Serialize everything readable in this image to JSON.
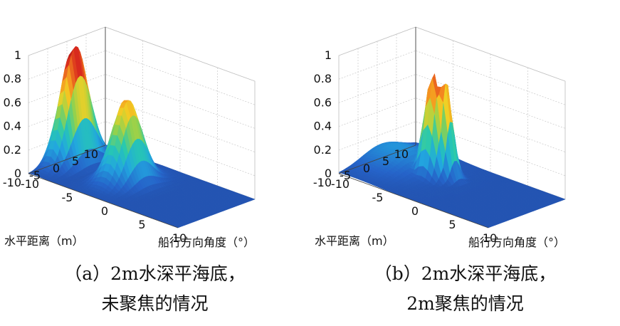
{
  "chart_data": [
    {
      "type": "surface",
      "panel": "a",
      "caption_line1": "（a）2m水深平海底，",
      "caption_line2": "未聚焦的情况",
      "xlabel": "船行方向角度（°）",
      "ylabel": "水平距离（m）",
      "zlabel": "",
      "x_ticks": [
        "-10",
        "-5",
        "0",
        "5",
        "10"
      ],
      "y_ticks": [
        "10",
        "5",
        "0",
        "-5",
        "-10"
      ],
      "z_ticks": [
        "0",
        "0.2",
        "0.4",
        "0.6",
        "0.8",
        "1"
      ],
      "xlim": [
        -10,
        10
      ],
      "ylim": [
        -10,
        10
      ],
      "zlim": [
        0,
        1
      ],
      "colormap": [
        "#1f3a8a",
        "#2563c9",
        "#22a6e0",
        "#27c9b0",
        "#8fd14f",
        "#f2d024",
        "#f58a1f",
        "#d7261e",
        "#9b1111"
      ],
      "peaks": [
        {
          "x": -9,
          "y": 0,
          "z": 1.0,
          "sx": 1.0,
          "sy": 3.2
        },
        {
          "x": -2,
          "y": 0,
          "z": 0.7,
          "sx": 1.3,
          "sy": 3.0
        }
      ]
    },
    {
      "type": "surface",
      "panel": "b",
      "caption_line1": "（b）2m水深平海底，",
      "caption_line2": "2m聚焦的情况",
      "xlabel": "船行方向角度（°）",
      "ylabel": "水平距离（m）",
      "zlabel": "",
      "x_ticks": [
        "-10",
        "-5",
        "0",
        "5",
        "10"
      ],
      "y_ticks": [
        "10",
        "5",
        "0",
        "-5",
        "-10"
      ],
      "z_ticks": [
        "0",
        "0.2",
        "0.4",
        "0.6",
        "0.8",
        "1"
      ],
      "xlim": [
        -10,
        10
      ],
      "ylim": [
        -10,
        10
      ],
      "zlim": [
        0,
        1
      ],
      "colormap": [
        "#1f3a8a",
        "#2563c9",
        "#22a6e0",
        "#27c9b0",
        "#8fd14f",
        "#f2d024",
        "#f58a1f",
        "#d7261e",
        "#9b1111"
      ],
      "peaks": [
        {
          "x": -3,
          "y": 1,
          "z": 0.88,
          "sx": 1.0,
          "sy": 1.4
        },
        {
          "x": -2,
          "y": 2,
          "z": 0.86,
          "sx": 0.8,
          "sy": 1.2
        },
        {
          "x": -8,
          "y": 1,
          "z": 0.15,
          "sx": 3.0,
          "sy": 5.0
        }
      ]
    }
  ]
}
